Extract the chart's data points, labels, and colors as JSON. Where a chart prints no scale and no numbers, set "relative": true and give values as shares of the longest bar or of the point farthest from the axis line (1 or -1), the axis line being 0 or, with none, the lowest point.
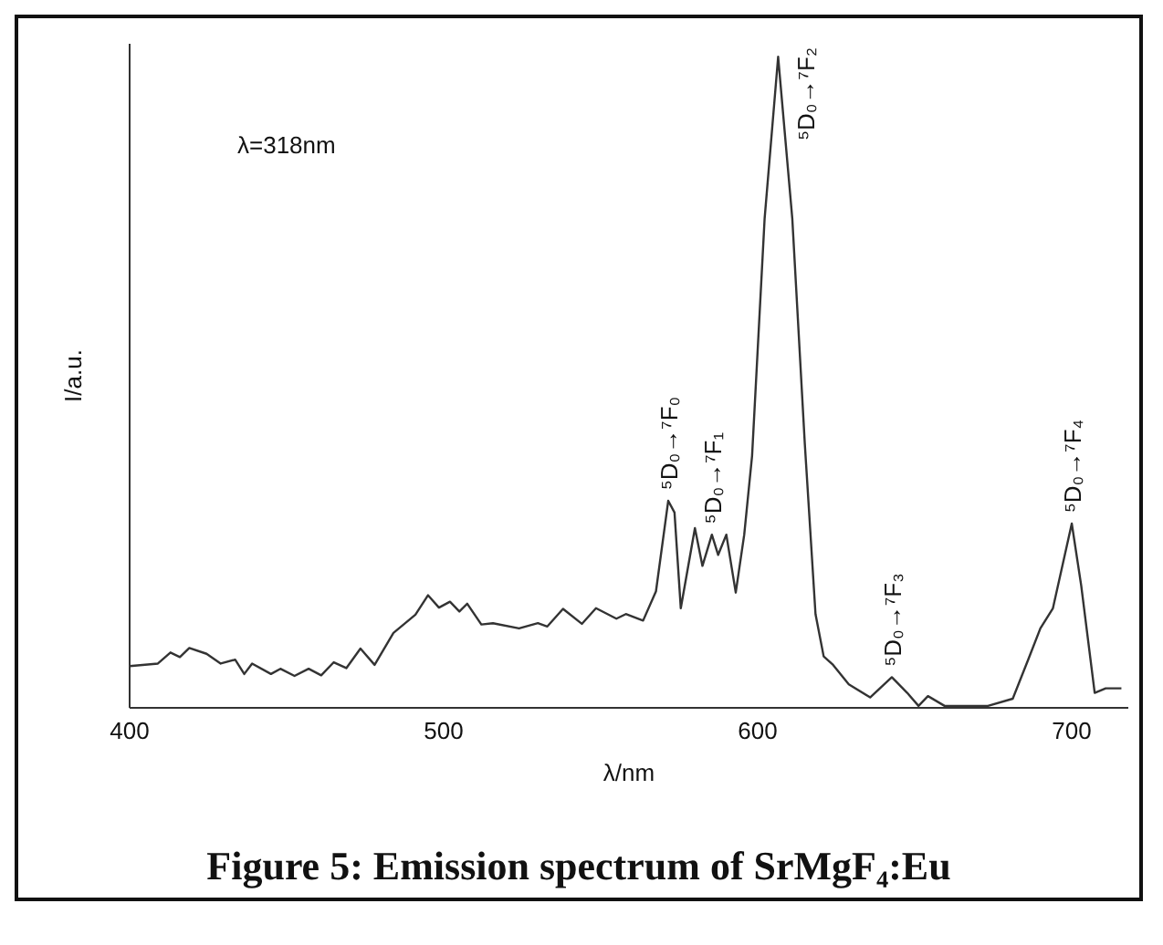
{
  "chart_data": {
    "type": "line",
    "title": "Figure 5: Emission spectrum of SrMgF₄:Eu",
    "xlabel": "λ/nm",
    "ylabel": "I/a.u.",
    "relative": true,
    "xlim": [
      400,
      718
    ],
    "xticks": [
      400,
      500,
      600,
      700
    ],
    "grid": false,
    "marker": "none",
    "line_style": "solid",
    "annotations": [
      "λ=318nm",
      {
        "text": "⁵D₀→⁷F₀",
        "x": 571.5,
        "y": 0.318
      },
      {
        "text": "⁵D₀→⁷F₁",
        "x": 585.4,
        "y": 0.266
      },
      {
        "text": "⁵D₀→⁷F₂",
        "x": 606.5,
        "y": 1
      },
      {
        "text": "⁵D₀→⁷F₃",
        "x": 642.7,
        "y": 0.047
      },
      {
        "text": "⁵D₀→⁷F₄",
        "x": 700,
        "y": 0.283
      }
    ],
    "series": [
      {
        "color": "#333333",
        "x": [
          400,
          409,
          413,
          416,
          419,
          424.5,
          429,
          433.6,
          436.5,
          439,
          445,
          448,
          452.5,
          457,
          461,
          465,
          469,
          473.5,
          478,
          484,
          491,
          495,
          498.5,
          502,
          505,
          507.5,
          512,
          515.7,
          524,
          530,
          533,
          538,
          544,
          548.5,
          555,
          558,
          563.5,
          567.6,
          571.5,
          573.5,
          575.5,
          580,
          582.4,
          585.4,
          587.4,
          590,
          593,
          595.7,
          598.2,
          602.2,
          606.5,
          611,
          615,
          618.4,
          621,
          624,
          629,
          635.8,
          642.7,
          647.6,
          651.2,
          654.2,
          659.5,
          673.3,
          681.2,
          686.2,
          690,
          694,
          700,
          703,
          707.3,
          710.8,
          715.8
        ],
        "values": [
          0.064,
          0.068,
          0.085,
          0.078,
          0.092,
          0.083,
          0.068,
          0.074,
          0.052,
          0.068,
          0.052,
          0.06,
          0.049,
          0.06,
          0.05,
          0.07,
          0.061,
          0.091,
          0.066,
          0.115,
          0.143,
          0.173,
          0.154,
          0.163,
          0.148,
          0.16,
          0.128,
          0.13,
          0.122,
          0.13,
          0.125,
          0.152,
          0.129,
          0.153,
          0.137,
          0.144,
          0.134,
          0.179,
          0.318,
          0.3,
          0.153,
          0.276,
          0.218,
          0.266,
          0.235,
          0.266,
          0.177,
          0.266,
          0.387,
          0.752,
          1,
          0.752,
          0.405,
          0.144,
          0.079,
          0.066,
          0.036,
          0.016,
          0.047,
          0.023,
          0.003,
          0.018,
          0.003,
          0.003,
          0.014,
          0.075,
          0.122,
          0.153,
          0.283,
          0.188,
          0.023,
          0.03,
          0.03
        ]
      }
    ]
  }
}
